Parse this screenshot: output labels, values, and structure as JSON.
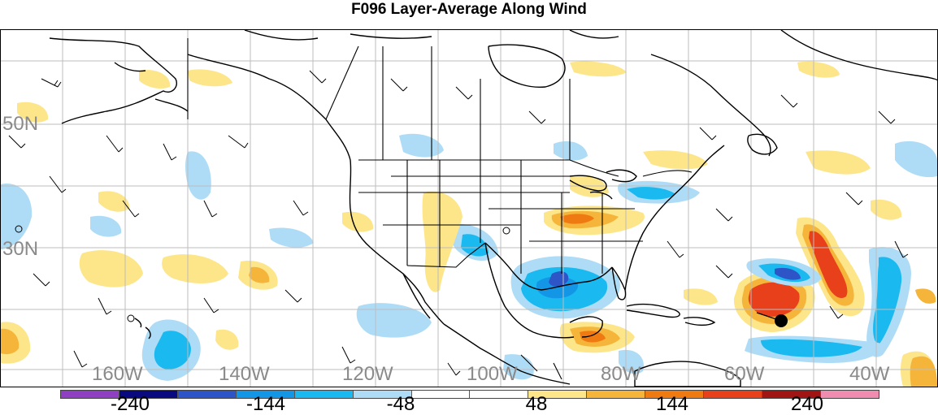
{
  "title": "F096 Layer-Average Along Wind",
  "map": {
    "type": "weather-map",
    "region": "North America / North Atlantic / Eastern Pacific",
    "lat_labels": [
      "50N",
      "30N"
    ],
    "lon_labels": [
      "160W",
      "140W",
      "120W",
      "100W",
      "80W",
      "60W",
      "40W"
    ]
  },
  "colorbar": {
    "colors": [
      "#8e3fc2",
      "#0a0a80",
      "#2d55c8",
      "#1496e6",
      "#1ab9f0",
      "#aedcf6",
      "#ffffff",
      "#ffffff",
      "#fde58a",
      "#f5b53a",
      "#f07a12",
      "#e8401a",
      "#a01414",
      "#f08cb0"
    ],
    "labels": [
      "-240",
      "-144",
      "-48",
      "48",
      "144",
      "240"
    ]
  }
}
